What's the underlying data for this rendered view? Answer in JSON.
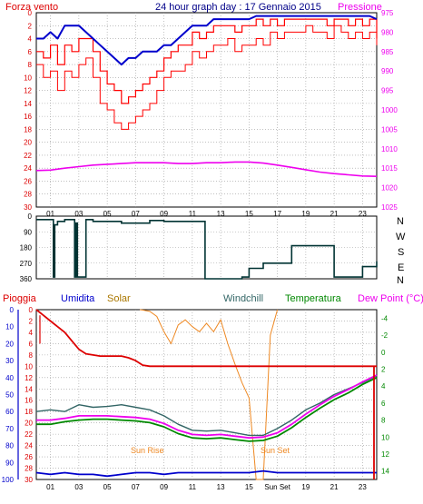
{
  "header": {
    "title": "24 hour graph day : 17 Gennaio 2015",
    "left_label": "Forza vento",
    "right_label": "Pressione"
  },
  "wind_dir_labels": [
    "N",
    "W",
    "S",
    "E",
    "N"
  ],
  "bottom_labels": {
    "pioggia": "Pioggia",
    "umidita": "Umidita",
    "solar": "Solar",
    "windchill": "Windchill",
    "temperatura": "Temperatura",
    "dewpoint": "Dew Point (°C)"
  },
  "annotations": {
    "sunrise": "Sun Rise",
    "sunset": "Sun Set"
  },
  "hour_ticks": [
    "01",
    "03",
    "05",
    "07",
    "09",
    "11",
    "13",
    "15",
    "17",
    "19",
    "21",
    "23"
  ],
  "hour_ticks_bottom": [
    "01",
    "03",
    "05",
    "07",
    "09",
    "11",
    "13",
    "15",
    "Sun Set",
    "19",
    "21",
    "23"
  ],
  "colors": {
    "wind_gust": "#ff0000",
    "wind_avg": "#0000cc",
    "pressure": "#ee00ee",
    "wind_dir": "#003333",
    "rain": "#dd0000",
    "humidity": "#0000cc",
    "solar": "#ee8822",
    "windchill": "#336666",
    "temperature": "#008800",
    "dewpoint": "#ee00ee",
    "title": "#000088",
    "solar_label": "#aa7700"
  },
  "chart_data": [
    {
      "type": "line",
      "name": "wind-pressure",
      "x_range": [
        0,
        24
      ],
      "y_left_label": "Forza vento",
      "y_left_range": [
        0,
        30
      ],
      "y_left_ticks": [
        0,
        2,
        4,
        6,
        8,
        10,
        12,
        14,
        16,
        18,
        20,
        22,
        24,
        26,
        28,
        30
      ],
      "y_right_label": "Pressione",
      "y_right_range": [
        975,
        1025
      ],
      "y_right_ticks": [
        975,
        980,
        985,
        990,
        995,
        1000,
        1005,
        1010,
        1015,
        1020,
        1025
      ],
      "grid": true,
      "series": [
        {
          "name": "Forza vento",
          "x": [
            0,
            0.5,
            1,
            1.5,
            2,
            2.5,
            3,
            3.5,
            4,
            4.5,
            5,
            5.5,
            6,
            6.5,
            7,
            7.5,
            8,
            8.5,
            9,
            9.5,
            10,
            10.5,
            11,
            11.5,
            12,
            12.5,
            13,
            13.5,
            14,
            14.5,
            15,
            15.5,
            16,
            16.5,
            17,
            17.5,
            18,
            18.5,
            19,
            19.5,
            20,
            20.5,
            21,
            21.5,
            22,
            22.5,
            23,
            23.5,
            24
          ],
          "values": [
            6,
            7,
            5,
            8,
            5,
            6,
            4,
            4,
            6,
            9,
            11,
            12,
            14,
            13,
            12,
            11,
            10,
            9,
            7,
            6,
            5,
            5,
            3,
            4,
            3,
            2,
            2,
            2,
            3,
            2,
            2,
            1,
            2,
            1,
            2,
            1,
            1,
            1,
            1,
            1,
            1,
            2,
            1,
            1,
            2,
            1,
            2,
            1,
            4
          ]
        },
        {
          "name": "Forza vento max",
          "x": [
            0,
            0.5,
            1,
            1.5,
            2,
            2.5,
            3,
            3.5,
            4,
            4.5,
            5,
            5.5,
            6,
            6.5,
            7,
            7.5,
            8,
            8.5,
            9,
            9.5,
            10,
            10.5,
            11,
            11.5,
            12,
            12.5,
            13,
            13.5,
            14,
            14.5,
            15,
            15.5,
            16,
            16.5,
            17,
            17.5,
            18,
            18.5,
            19,
            19.5,
            20,
            20.5,
            21,
            21.5,
            22,
            22.5,
            23,
            23.5,
            24
          ],
          "values": [
            8,
            10,
            9,
            12,
            9,
            10,
            8,
            7,
            10,
            14,
            15,
            17,
            18,
            17,
            16,
            15,
            14,
            12,
            10,
            9,
            9,
            8,
            6,
            7,
            6,
            5,
            5,
            4,
            6,
            5,
            5,
            4,
            5,
            3,
            4,
            3,
            3,
            3,
            2,
            3,
            3,
            4,
            2,
            3,
            4,
            3,
            4,
            3,
            5
          ]
        },
        {
          "name": "Vento medio",
          "x": [
            0,
            0.5,
            1,
            1.5,
            2,
            2.5,
            3,
            3.5,
            4,
            4.5,
            5,
            5.5,
            6,
            6.5,
            7,
            7.5,
            8,
            8.5,
            9,
            9.5,
            10,
            10.5,
            11,
            11.5,
            12,
            12.5,
            13,
            13.5,
            14,
            14.5,
            15,
            15.5,
            16,
            16.5,
            17,
            17.5,
            18,
            18.5,
            19,
            19.5,
            20,
            20.5,
            21,
            21.5,
            22,
            22.5,
            23,
            23.5,
            24
          ],
          "values": [
            4,
            4,
            3,
            4,
            2,
            2,
            2,
            3,
            4,
            5,
            6,
            7,
            8,
            7,
            7,
            6,
            6,
            6,
            5,
            5,
            4,
            3,
            2,
            2,
            2,
            1,
            1,
            1,
            1,
            1,
            1,
            0.5,
            0.5,
            0.5,
            0.5,
            0.5,
            0.5,
            0.5,
            0.5,
            0.5,
            0.5,
            0.5,
            0.5,
            0.5,
            0.5,
            0.5,
            0.5,
            0.5,
            1
          ]
        },
        {
          "name": "Pressione",
          "x": [
            0,
            1,
            2,
            3,
            4,
            5,
            6,
            7,
            8,
            9,
            10,
            11,
            12,
            13,
            14,
            15,
            16,
            17,
            18,
            19,
            20,
            21,
            22,
            23,
            24
          ],
          "values": [
            1015.6,
            1015.5,
            1015.0,
            1014.6,
            1014.2,
            1014.0,
            1013.8,
            1013.6,
            1013.6,
            1013.6,
            1013.8,
            1013.8,
            1013.6,
            1013.6,
            1013.4,
            1013.4,
            1013.7,
            1014.2,
            1014.8,
            1015.4,
            1016.0,
            1016.4,
            1016.7,
            1017.0,
            1017.1
          ]
        }
      ]
    },
    {
      "type": "line",
      "name": "wind-direction",
      "x_range": [
        0,
        24
      ],
      "y_range": [
        0,
        360
      ],
      "y_ticks": [
        0,
        90,
        180,
        270,
        360
      ],
      "y_tick_labels": [
        "0",
        "90",
        "180",
        "270",
        "360"
      ],
      "grid": true,
      "series": [
        {
          "name": "Direzione vento",
          "x": [
            0,
            1,
            1.2,
            1.3,
            1.5,
            2,
            2.7,
            2.8,
            2.9,
            3.2,
            3.3,
            3.5,
            4,
            5,
            6,
            7,
            8,
            9,
            10,
            11,
            11.8,
            11.9,
            12,
            13,
            14,
            14.5,
            15,
            16,
            17,
            18,
            19,
            20,
            21,
            22,
            23,
            24
          ],
          "values": [
            20,
            20,
            350,
            50,
            30,
            20,
            350,
            40,
            350,
            350,
            350,
            20,
            30,
            30,
            40,
            40,
            25,
            30,
            30,
            30,
            30,
            360,
            360,
            360,
            360,
            350,
            300,
            270,
            270,
            170,
            170,
            170,
            350,
            350,
            290,
            260
          ]
        }
      ]
    },
    {
      "type": "line",
      "name": "rain-humidity-temperature",
      "x_range": [
        0,
        24
      ],
      "y_left_ranges": {
        "Pioggia": [
          0,
          30
        ],
        "Umidita": [
          0,
          100
        ]
      },
      "y_left_ticks_pioggia": [
        0,
        2,
        4,
        6,
        8,
        10,
        12,
        14,
        16,
        18,
        20,
        22,
        24,
        26,
        28,
        30
      ],
      "y_left_ticks_umidita": [
        0,
        10,
        20,
        30,
        40,
        50,
        60,
        70,
        80,
        90,
        100
      ],
      "y_right_range": [
        -5,
        15
      ],
      "y_right_ticks": [
        -4,
        -2,
        0,
        2,
        4,
        6,
        8,
        10,
        12,
        14
      ],
      "grid": true,
      "series": [
        {
          "name": "Pioggia",
          "x": [
            0,
            0.5,
            1,
            1.5,
            2,
            2.5,
            3,
            3.5,
            4,
            4.5,
            5,
            5.5,
            6,
            6.5,
            7,
            7.5,
            8,
            8.5,
            9,
            10,
            11,
            12,
            13,
            14,
            15,
            16,
            17,
            18,
            19,
            20,
            21,
            22,
            23,
            24
          ],
          "values": [
            0,
            1,
            2,
            3,
            4,
            5.5,
            7,
            7.8,
            8,
            8.2,
            8.2,
            8.2,
            8.2,
            8.5,
            9,
            9.8,
            10,
            10,
            10,
            10,
            10,
            10,
            10,
            10,
            10,
            10,
            10,
            10,
            10,
            10,
            10,
            10,
            10,
            10
          ]
        },
        {
          "name": "Umidita",
          "x": [
            0,
            1,
            2,
            3,
            4,
            5,
            6,
            7,
            8,
            9,
            10,
            11,
            12,
            13,
            14,
            15,
            16,
            17,
            18,
            19,
            20,
            21,
            22,
            23,
            24
          ],
          "values": [
            96,
            97,
            96,
            97,
            97,
            98,
            97,
            96,
            96,
            97,
            96,
            96,
            96,
            96,
            96,
            96,
            95,
            96,
            96,
            96,
            96,
            96,
            96,
            96,
            96
          ]
        },
        {
          "name": "Solar",
          "x": [
            7.3,
            7.5,
            8,
            8.5,
            9,
            9.5,
            10,
            10.5,
            11,
            11.5,
            12,
            12.5,
            13,
            13.5,
            14,
            14.5,
            15,
            15.5,
            16,
            16.5,
            17
          ],
          "values": [
            0,
            2,
            10,
            40,
            130,
            200,
            90,
            60,
            100,
            130,
            80,
            130,
            60,
            200,
            320,
            430,
            520,
            1000,
            1000,
            150,
            0
          ]
        },
        {
          "name": "Windchill",
          "x": [
            0,
            1,
            2,
            3,
            4,
            5,
            6,
            7,
            8,
            9,
            10,
            11,
            12,
            13,
            14,
            15,
            16,
            17,
            18,
            19,
            20,
            21,
            22,
            23,
            24
          ],
          "values": [
            7.0,
            6.8,
            7.0,
            6.2,
            6.5,
            6.4,
            6.2,
            6.5,
            6.8,
            7.5,
            8.5,
            9.2,
            9.3,
            9.2,
            9.5,
            9.8,
            9.8,
            9.0,
            8.0,
            6.8,
            6.0,
            5.0,
            4.3,
            3.6,
            2.8
          ]
        },
        {
          "name": "Temperatura",
          "x": [
            0,
            1,
            2,
            3,
            4,
            5,
            6,
            7,
            8,
            9,
            10,
            11,
            12,
            13,
            14,
            15,
            16,
            17,
            18,
            19,
            20,
            21,
            22,
            23,
            24
          ],
          "values": [
            8.5,
            8.5,
            8.2,
            8.0,
            7.9,
            7.9,
            8.0,
            8.1,
            8.3,
            8.8,
            9.6,
            10.1,
            10.2,
            10.1,
            10.3,
            10.5,
            10.4,
            9.9,
            8.9,
            7.7,
            6.6,
            5.6,
            4.8,
            3.8,
            3.0
          ]
        },
        {
          "name": "Dew Point",
          "x": [
            0,
            1,
            2,
            3,
            4,
            5,
            6,
            7,
            8,
            9,
            10,
            11,
            12,
            13,
            14,
            15,
            16,
            17,
            18,
            19,
            20,
            21,
            22,
            23,
            24
          ],
          "values": [
            8.0,
            8.0,
            7.8,
            7.5,
            7.5,
            7.5,
            7.6,
            7.7,
            7.9,
            8.4,
            9.2,
            9.7,
            9.8,
            9.7,
            9.9,
            10.1,
            10.0,
            9.5,
            8.5,
            7.3,
            6.2,
            5.2,
            4.4,
            3.5,
            2.7
          ]
        }
      ]
    }
  ]
}
